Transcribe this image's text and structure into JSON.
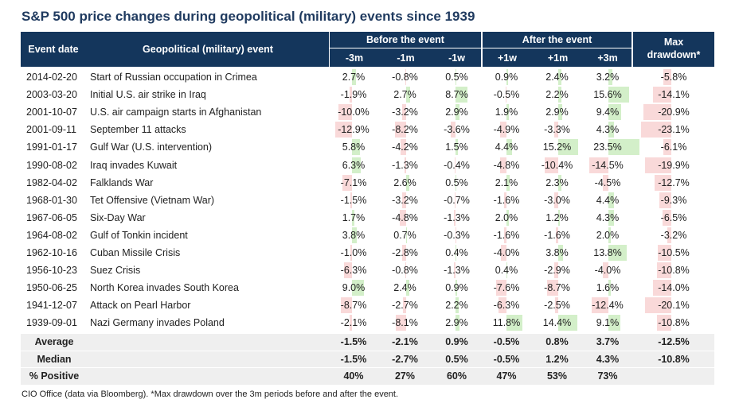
{
  "title": "S&P 500 price changes during geopolitical (military) events since 1939",
  "source": "CIO Office (data via Bloomberg). *Max drawdown over the 3m periods before and after the event.",
  "headers": {
    "event_date": "Event date",
    "event": "Geopolitical (military) event",
    "before": "Before the event",
    "after": "After the event",
    "max_drawdown": "Max drawdown*",
    "sub": [
      "-3m",
      "-1m",
      "-1w",
      "+1w",
      "+1m",
      "+3m"
    ]
  },
  "chart_data": {
    "type": "table",
    "title": "S&P 500 price changes during geopolitical (military) events since 1939",
    "columns": [
      "Event date",
      "Geopolitical (military) event",
      "-3m",
      "-1m",
      "-1w",
      "+1w",
      "+1m",
      "+3m",
      "Max drawdown*"
    ],
    "rows": [
      {
        "date": "2014-02-20",
        "event": "Start of Russian occupation in Crimea",
        "values": [
          "2.7%",
          "-0.8%",
          "0.5%",
          "0.9%",
          "2.4%",
          "3.2%",
          "-5.8%"
        ]
      },
      {
        "date": "2003-03-20",
        "event": "Initial U.S. air strike in Iraq",
        "values": [
          "-1.9%",
          "2.7%",
          "8.7%",
          "-0.5%",
          "2.2%",
          "15.6%",
          "-14.1%"
        ]
      },
      {
        "date": "2001-10-07",
        "event": "U.S. air campaign starts in Afghanistan",
        "values": [
          "-10.0%",
          "-3.2%",
          "2.9%",
          "1.9%",
          "2.9%",
          "9.4%",
          "-20.9%"
        ]
      },
      {
        "date": "2001-09-11",
        "event": "September 11 attacks",
        "values": [
          "-12.9%",
          "-8.2%",
          "-3.6%",
          "-4.9%",
          "-3.3%",
          "4.3%",
          "-23.1%"
        ]
      },
      {
        "date": "1991-01-17",
        "event": "Gulf War (U.S. intervention)",
        "values": [
          "5.8%",
          "-4.2%",
          "1.5%",
          "4.4%",
          "15.2%",
          "23.5%",
          "-6.1%"
        ]
      },
      {
        "date": "1990-08-02",
        "event": "Iraq invades Kuwait",
        "values": [
          "6.3%",
          "-1.3%",
          "-0.4%",
          "-4.8%",
          "-10.4%",
          "-14.5%",
          "-19.9%"
        ]
      },
      {
        "date": "1982-04-02",
        "event": "Falklands War",
        "values": [
          "-7.1%",
          "2.6%",
          "0.5%",
          "2.1%",
          "2.3%",
          "-4.5%",
          "-12.7%"
        ]
      },
      {
        "date": "1968-01-30",
        "event": "Tet Offensive (Vietnam War)",
        "values": [
          "-1.5%",
          "-3.2%",
          "-0.7%",
          "-1.6%",
          "-3.0%",
          "4.4%",
          "-9.3%"
        ]
      },
      {
        "date": "1967-06-05",
        "event": "Six-Day War",
        "values": [
          "1.7%",
          "-4.8%",
          "-1.3%",
          "2.0%",
          "1.2%",
          "4.3%",
          "-6.5%"
        ]
      },
      {
        "date": "1964-08-02",
        "event": "Gulf of Tonkin incident",
        "values": [
          "3.8%",
          "0.7%",
          "-0.3%",
          "-1.6%",
          "-1.6%",
          "2.0%",
          "-3.2%"
        ]
      },
      {
        "date": "1962-10-16",
        "event": "Cuban Missile Crisis",
        "values": [
          "-1.0%",
          "-2.8%",
          "0.4%",
          "-4.0%",
          "3.8%",
          "13.8%",
          "-10.5%"
        ]
      },
      {
        "date": "1956-10-23",
        "event": "Suez Crisis",
        "values": [
          "-6.3%",
          "-0.8%",
          "-1.3%",
          "0.4%",
          "-2.9%",
          "-4.0%",
          "-10.8%"
        ]
      },
      {
        "date": "1950-06-25",
        "event": "North Korea invades South Korea",
        "values": [
          "9.0%",
          "2.4%",
          "0.9%",
          "-7.6%",
          "-8.7%",
          "1.6%",
          "-14.0%"
        ]
      },
      {
        "date": "1941-12-07",
        "event": "Attack on Pearl Harbor",
        "values": [
          "-8.7%",
          "-2.7%",
          "2.2%",
          "-6.3%",
          "-2.5%",
          "-12.4%",
          "-20.1%"
        ]
      },
      {
        "date": "1939-09-01",
        "event": "Nazi Germany invades Poland",
        "values": [
          "-2.1%",
          "-8.1%",
          "2.9%",
          "11.8%",
          "14.4%",
          "9.1%",
          "-10.8%"
        ]
      }
    ],
    "summary": [
      {
        "label": "Average",
        "values": [
          "-1.5%",
          "-2.1%",
          "0.9%",
          "-0.5%",
          "0.8%",
          "3.7%",
          "-12.5%"
        ]
      },
      {
        "label": "Median",
        "values": [
          "-1.5%",
          "-2.7%",
          "0.5%",
          "-0.5%",
          "1.2%",
          "4.3%",
          "-10.8%"
        ]
      },
      {
        "label": "% Positive",
        "values": [
          "40%",
          "27%",
          "60%",
          "47%",
          "53%",
          "73%",
          ""
        ]
      }
    ],
    "colors": {
      "header": "#14365c",
      "positive_bar": "#d3efc9",
      "negative_bar": "#f9d9d9",
      "summary_bg": "#efefef"
    }
  }
}
